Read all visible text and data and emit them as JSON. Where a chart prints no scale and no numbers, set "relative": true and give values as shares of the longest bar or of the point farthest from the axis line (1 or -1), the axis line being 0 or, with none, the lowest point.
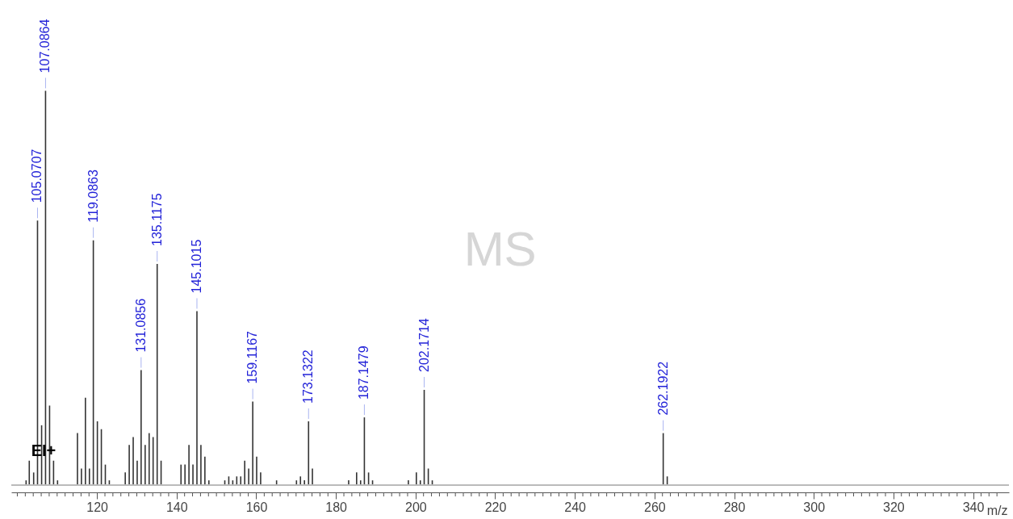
{
  "chart_data": {
    "type": "bar",
    "relative": true,
    "xlabel": "m/z",
    "color": "#333333",
    "grid": false,
    "x": [
      102.2,
      103,
      104.1,
      105.0707,
      106.1,
      107.0864,
      108.1,
      109.1,
      110.1,
      115.1,
      116.1,
      117.1,
      118.1,
      119.0863,
      120.1,
      121.1,
      122.1,
      123.1,
      127.1,
      128.1,
      129.1,
      130.1,
      131.0856,
      132.1,
      133.1,
      134.1,
      135.1175,
      136.1,
      141.1,
      142.1,
      143.1,
      144.1,
      145.1015,
      146.1,
      147.1,
      148.1,
      152.1,
      153.1,
      154.1,
      155.1,
      156.1,
      157.1,
      158.1,
      159.1167,
      160.1,
      161.1,
      165.1,
      170.1,
      171.1,
      172.1,
      173.1322,
      174.1,
      183.2,
      185.2,
      186.2,
      187.1479,
      188.2,
      189.2,
      198.2,
      200.2,
      201.2,
      202.1714,
      203.2,
      204.2,
      262.1922,
      263.2
    ],
    "values": [
      0.01,
      0.06,
      0.03,
      0.67,
      0.15,
      1,
      0.2,
      0.06,
      0.01,
      0.13,
      0.04,
      0.22,
      0.04,
      0.62,
      0.16,
      0.14,
      0.05,
      0.01,
      0.03,
      0.1,
      0.12,
      0.06,
      0.29,
      0.1,
      0.13,
      0.12,
      0.56,
      0.06,
      0.05,
      0.05,
      0.1,
      0.05,
      0.44,
      0.1,
      0.07,
      0.01,
      0.01,
      0.02,
      0.01,
      0.02,
      0.02,
      0.06,
      0.04,
      0.21,
      0.07,
      0.03,
      0.01,
      0.01,
      0.02,
      0.01,
      0.16,
      0.04,
      0.01,
      0.03,
      0.01,
      0.17,
      0.03,
      0.01,
      0.01,
      0.03,
      0.01,
      0.24,
      0.04,
      0.01,
      0.13,
      0.02
    ],
    "xlim": [
      99.5,
      348
    ],
    "xticks": [
      {
        "value": 100,
        "label": null
      },
      {
        "value": 102,
        "label": null
      },
      {
        "value": 104,
        "label": null
      },
      {
        "value": 106,
        "label": null
      },
      {
        "value": 108,
        "label": null
      },
      {
        "value": 110,
        "label": null
      },
      {
        "value": 112,
        "label": null
      },
      {
        "value": 114,
        "label": null
      },
      {
        "value": 116,
        "label": null
      },
      {
        "value": 118,
        "label": null
      },
      120,
      {
        "value": 122,
        "label": null
      },
      {
        "value": 124,
        "label": null
      },
      {
        "value": 126,
        "label": null
      },
      {
        "value": 128,
        "label": null
      },
      {
        "value": 130,
        "label": null
      },
      {
        "value": 132,
        "label": null
      },
      {
        "value": 134,
        "label": null
      },
      {
        "value": 136,
        "label": null
      },
      {
        "value": 138,
        "label": null
      },
      140,
      {
        "value": 142,
        "label": null
      },
      {
        "value": 144,
        "label": null
      },
      {
        "value": 146,
        "label": null
      },
      {
        "value": 148,
        "label": null
      },
      {
        "value": 150,
        "label": null
      },
      {
        "value": 152,
        "label": null
      },
      {
        "value": 154,
        "label": null
      },
      {
        "value": 156,
        "label": null
      },
      {
        "value": 158,
        "label": null
      },
      160,
      {
        "value": 162,
        "label": null
      },
      {
        "value": 164,
        "label": null
      },
      {
        "value": 166,
        "label": null
      },
      {
        "value": 168,
        "label": null
      },
      {
        "value": 170,
        "label": null
      },
      {
        "value": 172,
        "label": null
      },
      {
        "value": 174,
        "label": null
      },
      {
        "value": 176,
        "label": null
      },
      {
        "value": 178,
        "label": null
      },
      180,
      {
        "value": 182,
        "label": null
      },
      {
        "value": 184,
        "label": null
      },
      {
        "value": 186,
        "label": null
      },
      {
        "value": 188,
        "label": null
      },
      {
        "value": 190,
        "label": null
      },
      {
        "value": 192,
        "label": null
      },
      {
        "value": 194,
        "label": null
      },
      {
        "value": 196,
        "label": null
      },
      {
        "value": 198,
        "label": null
      },
      200,
      {
        "value": 202,
        "label": null
      },
      {
        "value": 204,
        "label": null
      },
      {
        "value": 206,
        "label": null
      },
      {
        "value": 208,
        "label": null
      },
      {
        "value": 210,
        "label": null
      },
      {
        "value": 212,
        "label": null
      },
      {
        "value": 214,
        "label": null
      },
      {
        "value": 216,
        "label": null
      },
      {
        "value": 218,
        "label": null
      },
      220,
      {
        "value": 222,
        "label": null
      },
      {
        "value": 224,
        "label": null
      },
      {
        "value": 226,
        "label": null
      },
      {
        "value": 228,
        "label": null
      },
      {
        "value": 230,
        "label": null
      },
      {
        "value": 232,
        "label": null
      },
      {
        "value": 234,
        "label": null
      },
      {
        "value": 236,
        "label": null
      },
      {
        "value": 238,
        "label": null
      },
      240,
      {
        "value": 242,
        "label": null
      },
      {
        "value": 244,
        "label": null
      },
      {
        "value": 246,
        "label": null
      },
      {
        "value": 248,
        "label": null
      },
      {
        "value": 250,
        "label": null
      },
      {
        "value": 252,
        "label": null
      },
      {
        "value": 254,
        "label": null
      },
      {
        "value": 256,
        "label": null
      },
      {
        "value": 258,
        "label": null
      },
      260,
      {
        "value": 262,
        "label": null
      },
      {
        "value": 264,
        "label": null
      },
      {
        "value": 266,
        "label": null
      },
      {
        "value": 268,
        "label": null
      },
      {
        "value": 270,
        "label": null
      },
      {
        "value": 272,
        "label": null
      },
      {
        "value": 274,
        "label": null
      },
      {
        "value": 276,
        "label": null
      },
      {
        "value": 278,
        "label": null
      },
      280,
      {
        "value": 282,
        "label": null
      },
      {
        "value": 284,
        "label": null
      },
      {
        "value": 286,
        "label": null
      },
      {
        "value": 288,
        "label": null
      },
      {
        "value": 290,
        "label": null
      },
      {
        "value": 292,
        "label": null
      },
      {
        "value": 294,
        "label": null
      },
      {
        "value": 296,
        "label": null
      },
      {
        "value": 298,
        "label": null
      },
      300,
      {
        "value": 302,
        "label": null
      },
      {
        "value": 304,
        "label": null
      },
      {
        "value": 306,
        "label": null
      },
      {
        "value": 308,
        "label": null
      },
      {
        "value": 310,
        "label": null
      },
      {
        "value": 312,
        "label": null
      },
      {
        "value": 314,
        "label": null
      },
      {
        "value": 316,
        "label": null
      },
      {
        "value": 318,
        "label": null
      },
      320,
      {
        "value": 322,
        "label": null
      },
      {
        "value": 324,
        "label": null
      },
      {
        "value": 326,
        "label": null
      },
      {
        "value": 328,
        "label": null
      },
      {
        "value": 330,
        "label": null
      },
      {
        "value": 332,
        "label": null
      },
      {
        "value": 334,
        "label": null
      },
      {
        "value": 336,
        "label": null
      },
      {
        "value": 338,
        "label": null
      },
      340,
      {
        "value": 342,
        "label": null
      },
      {
        "value": 344,
        "label": null
      },
      {
        "value": 346,
        "label": null
      }
    ],
    "annotations": [
      "MS",
      "EI+",
      {
        "text": "105.0707",
        "x": 105.0707,
        "y": 0.67
      },
      {
        "text": "107.0864",
        "x": 107.0864,
        "y": 1
      },
      {
        "text": "119.0863",
        "x": 119.0863,
        "y": 0.62
      },
      {
        "text": "131.0856",
        "x": 131.0856,
        "y": 0.29
      },
      {
        "text": "135.1175",
        "x": 135.1175,
        "y": 0.56
      },
      {
        "text": "145.1015",
        "x": 145.1015,
        "y": 0.44
      },
      {
        "text": "159.1167",
        "x": 159.1167,
        "y": 0.21
      },
      {
        "text": "173.1322",
        "x": 173.1322,
        "y": 0.16
      },
      {
        "text": "187.1479",
        "x": 187.1479,
        "y": 0.17
      },
      {
        "text": "202.1714",
        "x": 202.1714,
        "y": 0.24
      },
      {
        "text": "262.1922",
        "x": 262.1922,
        "y": 0.13
      }
    ]
  }
}
